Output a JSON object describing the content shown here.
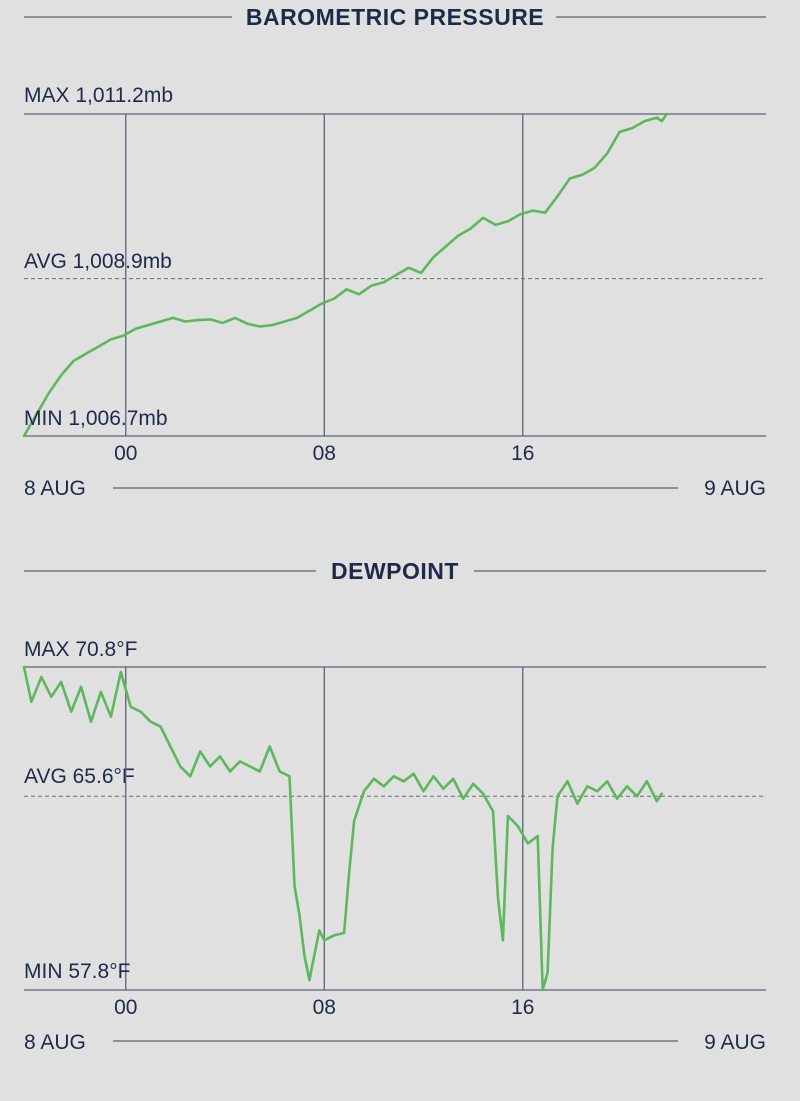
{
  "colors": {
    "background": "#e0e0e0",
    "text": "#1f2a4a",
    "line": "#5cb85c",
    "grid": "#5a6478"
  },
  "chart_data": [
    {
      "type": "line",
      "title": "BAROMETRIC PRESSURE",
      "max_label": "MAX 1,011.2mb",
      "avg_label": "AVG 1,008.9mb",
      "min_label": "MIN 1,006.7mb",
      "ylim": [
        1006.7,
        1011.2
      ],
      "avg": 1008.9,
      "xlim": [
        -4.1,
        25.8
      ],
      "x_ticks": [
        {
          "value": 0,
          "label": "00"
        },
        {
          "value": 8,
          "label": "08"
        },
        {
          "value": 16,
          "label": "16"
        }
      ],
      "start_label": "8 AUG",
      "end_label": "9 AUG",
      "grid": true,
      "series": [
        {
          "points": [
            [
              -4.1,
              1006.7
            ],
            [
              -3.6,
              1007.0
            ],
            [
              -3.1,
              1007.3
            ],
            [
              -2.6,
              1007.55
            ],
            [
              -2.1,
              1007.75
            ],
            [
              -1.6,
              1007.85
            ],
            [
              -1.1,
              1007.95
            ],
            [
              -0.6,
              1008.05
            ],
            [
              -0.1,
              1008.1
            ],
            [
              0.4,
              1008.2
            ],
            [
              0.9,
              1008.25
            ],
            [
              1.4,
              1008.3
            ],
            [
              1.9,
              1008.35
            ],
            [
              2.4,
              1008.3
            ],
            [
              2.9,
              1008.32
            ],
            [
              3.4,
              1008.33
            ],
            [
              3.9,
              1008.28
            ],
            [
              4.4,
              1008.35
            ],
            [
              4.9,
              1008.27
            ],
            [
              5.4,
              1008.23
            ],
            [
              5.9,
              1008.25
            ],
            [
              6.4,
              1008.3
            ],
            [
              6.9,
              1008.35
            ],
            [
              7.4,
              1008.45
            ],
            [
              7.9,
              1008.55
            ],
            [
              8.4,
              1008.62
            ],
            [
              8.9,
              1008.75
            ],
            [
              9.4,
              1008.68
            ],
            [
              9.9,
              1008.8
            ],
            [
              10.4,
              1008.85
            ],
            [
              10.9,
              1008.95
            ],
            [
              11.4,
              1009.05
            ],
            [
              11.9,
              1008.98
            ],
            [
              12.4,
              1009.2
            ],
            [
              12.9,
              1009.35
            ],
            [
              13.4,
              1009.5
            ],
            [
              13.9,
              1009.6
            ],
            [
              14.4,
              1009.75
            ],
            [
              14.9,
              1009.65
            ],
            [
              15.4,
              1009.7
            ],
            [
              15.9,
              1009.8
            ],
            [
              16.4,
              1009.85
            ],
            [
              16.9,
              1009.82
            ],
            [
              17.4,
              1010.05
            ],
            [
              17.9,
              1010.3
            ],
            [
              18.4,
              1010.35
            ],
            [
              18.9,
              1010.45
            ],
            [
              19.4,
              1010.65
            ],
            [
              19.9,
              1010.95
            ],
            [
              20.4,
              1011.0
            ],
            [
              20.9,
              1011.1
            ],
            [
              21.4,
              1011.15
            ],
            [
              21.6,
              1011.1
            ],
            [
              21.8,
              1011.2
            ]
          ]
        }
      ]
    },
    {
      "type": "line",
      "title": "DEWPOINT",
      "max_label": "MAX 70.8°F",
      "avg_label": "AVG 65.6°F",
      "min_label": "MIN 57.8°F",
      "ylim": [
        57.8,
        70.8
      ],
      "avg": 65.6,
      "xlim": [
        -4.1,
        25.8
      ],
      "x_ticks": [
        {
          "value": 0,
          "label": "00"
        },
        {
          "value": 8,
          "label": "08"
        },
        {
          "value": 16,
          "label": "16"
        }
      ],
      "start_label": "8 AUG",
      "end_label": "9 AUG",
      "grid": true,
      "series": [
        {
          "points": [
            [
              -4.1,
              70.8
            ],
            [
              -3.8,
              69.4
            ],
            [
              -3.4,
              70.4
            ],
            [
              -3.0,
              69.6
            ],
            [
              -2.6,
              70.2
            ],
            [
              -2.2,
              69.0
            ],
            [
              -1.8,
              70.0
            ],
            [
              -1.4,
              68.6
            ],
            [
              -1.0,
              69.8
            ],
            [
              -0.6,
              68.8
            ],
            [
              -0.2,
              70.6
            ],
            [
              0.2,
              69.2
            ],
            [
              0.6,
              69.0
            ],
            [
              1.0,
              68.6
            ],
            [
              1.4,
              68.4
            ],
            [
              1.8,
              67.6
            ],
            [
              2.2,
              66.8
            ],
            [
              2.6,
              66.4
            ],
            [
              3.0,
              67.4
            ],
            [
              3.4,
              66.8
            ],
            [
              3.8,
              67.2
            ],
            [
              4.2,
              66.6
            ],
            [
              4.6,
              67.0
            ],
            [
              5.0,
              66.8
            ],
            [
              5.4,
              66.6
            ],
            [
              5.8,
              67.6
            ],
            [
              6.2,
              66.6
            ],
            [
              6.6,
              66.4
            ],
            [
              6.8,
              62.0
            ],
            [
              7.0,
              60.8
            ],
            [
              7.2,
              59.2
            ],
            [
              7.4,
              58.2
            ],
            [
              7.6,
              59.2
            ],
            [
              7.8,
              60.2
            ],
            [
              8.0,
              59.8
            ],
            [
              8.4,
              60.0
            ],
            [
              8.8,
              60.1
            ],
            [
              9.0,
              62.5
            ],
            [
              9.2,
              64.6
            ],
            [
              9.6,
              65.8
            ],
            [
              10.0,
              66.3
            ],
            [
              10.4,
              66.0
            ],
            [
              10.8,
              66.4
            ],
            [
              11.2,
              66.2
            ],
            [
              11.6,
              66.5
            ],
            [
              12.0,
              65.8
            ],
            [
              12.4,
              66.4
            ],
            [
              12.8,
              65.9
            ],
            [
              13.2,
              66.3
            ],
            [
              13.6,
              65.5
            ],
            [
              14.0,
              66.1
            ],
            [
              14.4,
              65.7
            ],
            [
              14.8,
              65.0
            ],
            [
              15.0,
              61.5
            ],
            [
              15.2,
              59.8
            ],
            [
              15.4,
              64.8
            ],
            [
              15.8,
              64.4
            ],
            [
              16.2,
              63.7
            ],
            [
              16.6,
              64.0
            ],
            [
              16.8,
              57.8
            ],
            [
              17.0,
              58.5
            ],
            [
              17.2,
              63.5
            ],
            [
              17.4,
              65.6
            ],
            [
              17.8,
              66.2
            ],
            [
              18.2,
              65.3
            ],
            [
              18.6,
              66.0
            ],
            [
              19.0,
              65.8
            ],
            [
              19.4,
              66.2
            ],
            [
              19.8,
              65.5
            ],
            [
              20.2,
              66.0
            ],
            [
              20.6,
              65.6
            ],
            [
              21.0,
              66.2
            ],
            [
              21.4,
              65.4
            ],
            [
              21.6,
              65.7
            ]
          ]
        }
      ]
    }
  ]
}
